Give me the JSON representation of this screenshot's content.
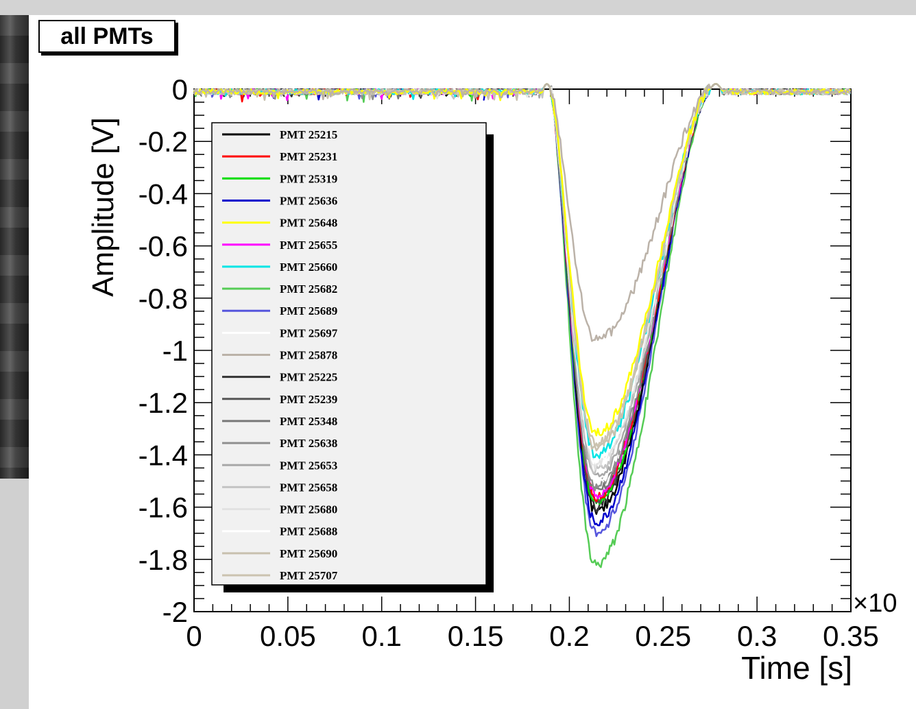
{
  "chart_data": {
    "type": "line",
    "title": "all PMTs",
    "xlabel": "Time [s]",
    "ylabel": "Amplitude [V]",
    "x_multiplier": "×10",
    "xlim": [
      0,
      0.35
    ],
    "ylim": [
      -2,
      0
    ],
    "x_ticks": [
      "0",
      "0.05",
      "0.1",
      "0.15",
      "0.2",
      "0.25",
      "0.3",
      "0.35"
    ],
    "y_ticks": [
      "0",
      "-0.2",
      "-0.4",
      "-0.6",
      "-0.8",
      "-1",
      "-1.2",
      "-1.4",
      "-1.6",
      "-1.8",
      "-2"
    ],
    "grid": false,
    "legend_position": "left",
    "pulse": {
      "start": 0.19,
      "end": 0.275
    },
    "series": [
      {
        "name": "PMT 25215",
        "color": "#000000",
        "min_x": 0.214,
        "min_y": -1.62
      },
      {
        "name": "PMT 25231",
        "color": "#ff0000",
        "min_x": 0.214,
        "min_y": -1.56
      },
      {
        "name": "PMT 25319",
        "color": "#00dd00",
        "min_x": 0.214,
        "min_y": -1.58
      },
      {
        "name": "PMT 25636",
        "color": "#0000cc",
        "min_x": 0.214,
        "min_y": -1.66
      },
      {
        "name": "PMT 25648",
        "color": "#ffff00",
        "min_x": 0.214,
        "min_y": -1.32
      },
      {
        "name": "PMT 25655",
        "color": "#ff00ff",
        "min_x": 0.214,
        "min_y": -1.55
      },
      {
        "name": "PMT 25660",
        "color": "#00e5e5",
        "min_x": 0.214,
        "min_y": -1.4
      },
      {
        "name": "PMT 25682",
        "color": "#55cc55",
        "min_x": 0.214,
        "min_y": -1.82
      },
      {
        "name": "PMT 25689",
        "color": "#5555dd",
        "min_x": 0.214,
        "min_y": -1.7
      },
      {
        "name": "PMT 25697",
        "color": "#ffffff",
        "min_x": 0.214,
        "min_y": -1.5
      },
      {
        "name": "PMT 25878",
        "color": "#bbb2a8",
        "min_x": 0.214,
        "min_y": -0.96
      },
      {
        "name": "PMT 25225",
        "color": "#333333",
        "min_x": 0.214,
        "min_y": -1.6
      },
      {
        "name": "PMT 25239",
        "color": "#555555",
        "min_x": 0.214,
        "min_y": -1.57
      },
      {
        "name": "PMT 25348",
        "color": "#777777",
        "min_x": 0.214,
        "min_y": -1.54
      },
      {
        "name": "PMT 25638",
        "color": "#8f8f8f",
        "min_x": 0.214,
        "min_y": -1.52
      },
      {
        "name": "PMT 25653",
        "color": "#a8a8a8",
        "min_x": 0.214,
        "min_y": -1.49
      },
      {
        "name": "PMT 25658",
        "color": "#c4c4c4",
        "min_x": 0.214,
        "min_y": -1.46
      },
      {
        "name": "PMT 25680",
        "color": "#e2e2e2",
        "min_x": 0.214,
        "min_y": -1.44
      },
      {
        "name": "PMT 25688",
        "color": "#ffffff",
        "min_x": 0.214,
        "min_y": -1.42
      },
      {
        "name": "PMT 25690",
        "color": "#c8c0ae",
        "min_x": 0.214,
        "min_y": -1.38
      },
      {
        "name": "PMT 25707",
        "color": "#cbc3b0",
        "min_x": 0.214,
        "min_y": -1.36
      }
    ]
  }
}
